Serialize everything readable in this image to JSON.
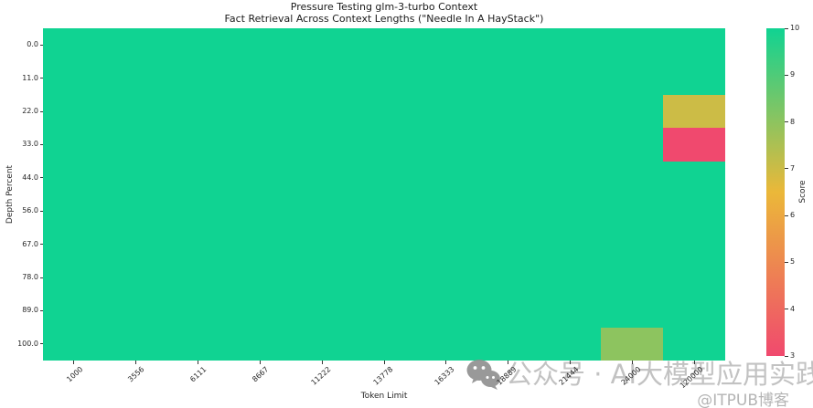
{
  "chart_data": {
    "type": "heatmap",
    "title": "Pressure Testing glm-3-turbo Context",
    "subtitle": "Fact Retrieval Across Context Lengths (\"Needle In A HayStack\")",
    "xlabel": "Token Limit",
    "ylabel": "Depth Percent",
    "x_categories": [
      "1000",
      "3556",
      "6111",
      "8667",
      "11222",
      "13778",
      "16333",
      "18889",
      "21444",
      "24000",
      "120000"
    ],
    "y_categories": [
      "0.0",
      "11.0",
      "22.0",
      "33.0",
      "44.0",
      "56.0",
      "67.0",
      "78.0",
      "89.0",
      "100.0"
    ],
    "values": [
      [
        10,
        10,
        10,
        10,
        10,
        10,
        10,
        10,
        10,
        10,
        10
      ],
      [
        10,
        10,
        10,
        10,
        10,
        10,
        10,
        10,
        10,
        10,
        10
      ],
      [
        10,
        10,
        10,
        10,
        10,
        10,
        10,
        10,
        10,
        10,
        7
      ],
      [
        10,
        10,
        10,
        10,
        10,
        10,
        10,
        10,
        10,
        10,
        3
      ],
      [
        10,
        10,
        10,
        10,
        10,
        10,
        10,
        10,
        10,
        10,
        10
      ],
      [
        10,
        10,
        10,
        10,
        10,
        10,
        10,
        10,
        10,
        10,
        10
      ],
      [
        10,
        10,
        10,
        10,
        10,
        10,
        10,
        10,
        10,
        10,
        10
      ],
      [
        10,
        10,
        10,
        10,
        10,
        10,
        10,
        10,
        10,
        10,
        10
      ],
      [
        10,
        10,
        10,
        10,
        10,
        10,
        10,
        10,
        10,
        10,
        10
      ],
      [
        10,
        10,
        10,
        10,
        10,
        10,
        10,
        10,
        10,
        8,
        10
      ]
    ],
    "colorbar": {
      "label": "Score",
      "vmin": 3,
      "vmax": 10,
      "ticks": [
        10,
        9,
        8,
        7,
        6,
        5,
        4,
        3
      ]
    },
    "colormap_stops": [
      {
        "pos": 0.0,
        "color": "#F0496E"
      },
      {
        "pos": 0.5,
        "color": "#EBB839"
      },
      {
        "pos": 1.0,
        "color": "#10D392"
      }
    ],
    "legend_position": "right",
    "grid": false
  },
  "watermark": {
    "text": "公众号 · AI大模型应用实践",
    "credit": "@ITPUB博客",
    "icon": "wechat-icon",
    "icon_color": "#8f8f8f"
  }
}
